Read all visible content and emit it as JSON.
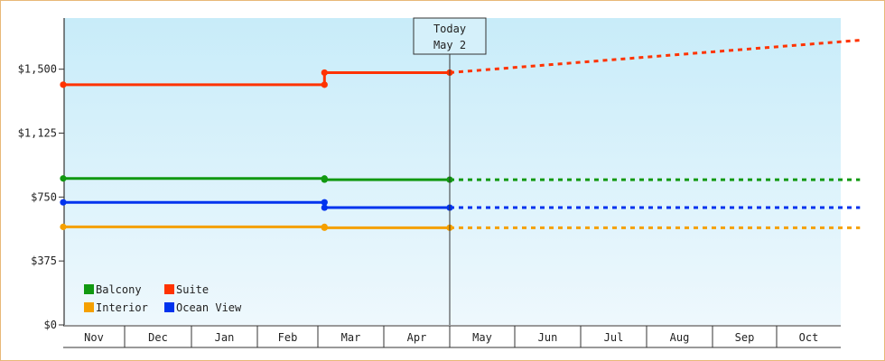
{
  "chart_data": {
    "type": "line",
    "title": "",
    "xlabel": "",
    "ylabel": "",
    "ylim": [
      0,
      1800
    ],
    "y_ticks": [
      "$0",
      "$375",
      "$750",
      "$1,125",
      "$1,500"
    ],
    "y_tick_values": [
      0,
      375,
      750,
      1125,
      1500
    ],
    "categories": [
      "Nov",
      "Dec",
      "Jan",
      "Feb",
      "Mar",
      "Apr",
      "May",
      "Jun",
      "Jul",
      "Aug",
      "Sep",
      "Oct"
    ],
    "grid": false,
    "legend_position": "bottom-left",
    "today_marker": {
      "line1": "Today",
      "line2": "May 2",
      "x": 6.0
    },
    "series": [
      {
        "name": "Balcony",
        "color": "#119911",
        "actual": [
          [
            0,
            859
          ],
          [
            4.1,
            859
          ],
          [
            4.1,
            852
          ],
          [
            6.0,
            852
          ]
        ],
        "projected": [
          [
            6.0,
            852
          ],
          [
            12.3,
            852
          ]
        ]
      },
      {
        "name": "Suite",
        "color": "#ff3300",
        "actual": [
          [
            0,
            1409
          ],
          [
            4.1,
            1409
          ],
          [
            4.1,
            1480
          ],
          [
            6.0,
            1480
          ]
        ],
        "projected": [
          [
            6.0,
            1480
          ],
          [
            12.3,
            1670
          ]
        ]
      },
      {
        "name": "Interior",
        "color": "#f5a000",
        "actual": [
          [
            0,
            575
          ],
          [
            4.1,
            575
          ],
          [
            4.1,
            570
          ],
          [
            6.0,
            570
          ]
        ],
        "projected": [
          [
            6.0,
            570
          ],
          [
            12.3,
            570
          ]
        ]
      },
      {
        "name": "Ocean View",
        "color": "#0033ee",
        "actual": [
          [
            0,
            719
          ],
          [
            4.1,
            719
          ],
          [
            4.1,
            688
          ],
          [
            6.0,
            688
          ]
        ],
        "projected": [
          [
            6.0,
            688
          ],
          [
            12.3,
            688
          ]
        ]
      }
    ]
  }
}
